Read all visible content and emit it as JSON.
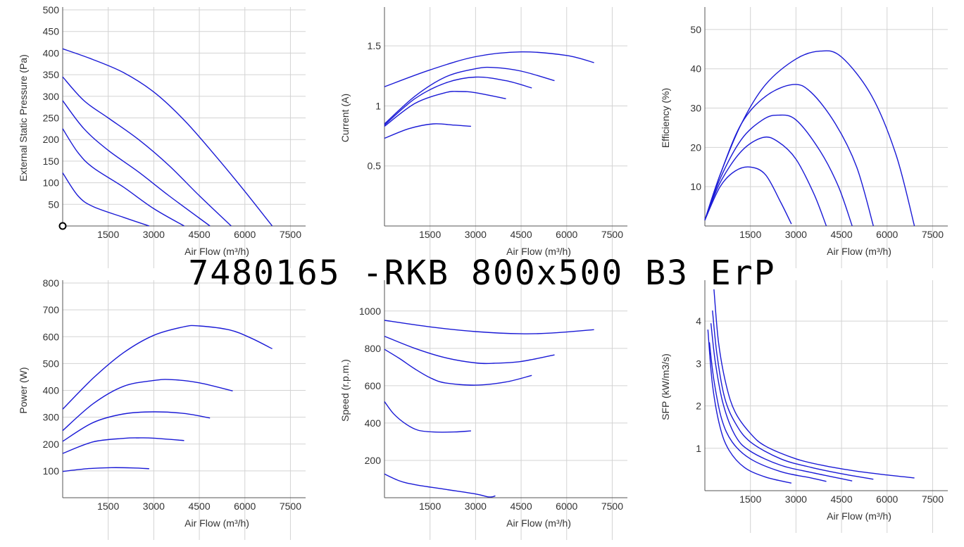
{
  "title": "7480165 -RKB 800x500 B3 ErP",
  "colors": {
    "curve": "#1a1ad6",
    "grid": "#d3d3d3",
    "axis": "#555555"
  },
  "chart_data": [
    {
      "type": "line",
      "xlabel": "Air Flow (m³/h)",
      "ylabel": "External Static Pressure (Pa)",
      "xlim": [
        0,
        8000
      ],
      "ylim": [
        0,
        500
      ],
      "xticks": [
        1500,
        3000,
        4500,
        6000,
        7500
      ],
      "yticks": [
        50,
        100,
        150,
        200,
        250,
        300,
        350,
        400,
        450,
        500
      ],
      "operating_point": {
        "x": 0,
        "y": 0
      },
      "series": [
        {
          "points": [
            [
              0,
              410
            ],
            [
              1000,
              385
            ],
            [
              2000,
              355
            ],
            [
              3000,
              310
            ],
            [
              4000,
              245
            ],
            [
              5000,
              165
            ],
            [
              6000,
              80
            ],
            [
              6900,
              0
            ]
          ]
        },
        {
          "points": [
            [
              0,
              345
            ],
            [
              700,
              290
            ],
            [
              1500,
              250
            ],
            [
              2500,
              200
            ],
            [
              3500,
              140
            ],
            [
              4500,
              70
            ],
            [
              5550,
              0
            ]
          ]
        },
        {
          "points": [
            [
              0,
              290
            ],
            [
              700,
              225
            ],
            [
              1500,
              175
            ],
            [
              2500,
              125
            ],
            [
              3500,
              70
            ],
            [
              4850,
              0
            ]
          ]
        },
        {
          "points": [
            [
              0,
              225
            ],
            [
              500,
              170
            ],
            [
              1000,
              135
            ],
            [
              2000,
              90
            ],
            [
              3000,
              40
            ],
            [
              4000,
              0
            ]
          ]
        },
        {
          "points": [
            [
              0,
              123
            ],
            [
              500,
              70
            ],
            [
              1000,
              45
            ],
            [
              2000,
              20
            ],
            [
              2850,
              0
            ]
          ]
        }
      ]
    },
    {
      "type": "line",
      "xlabel": "Air Flow (m³/h)",
      "ylabel": "Current (A)",
      "xlim": [
        0,
        8000
      ],
      "ylim": [
        0,
        1.8
      ],
      "xticks": [
        1500,
        3000,
        4500,
        6000,
        7500
      ],
      "yticks": [
        0.5,
        1,
        1.5
      ],
      "series": [
        {
          "points": [
            [
              0,
              1.16
            ],
            [
              1500,
              1.3
            ],
            [
              3000,
              1.41
            ],
            [
              4500,
              1.45
            ],
            [
              6000,
              1.42
            ],
            [
              6900,
              1.36
            ]
          ]
        },
        {
          "points": [
            [
              0,
              0.85
            ],
            [
              1000,
              1.08
            ],
            [
              2000,
              1.24
            ],
            [
              3000,
              1.31
            ],
            [
              3600,
              1.32
            ],
            [
              4500,
              1.29
            ],
            [
              5600,
              1.21
            ]
          ]
        },
        {
          "points": [
            [
              0,
              0.84
            ],
            [
              1000,
              1.06
            ],
            [
              2000,
              1.19
            ],
            [
              3000,
              1.24
            ],
            [
              4000,
              1.21
            ],
            [
              4850,
              1.15
            ]
          ]
        },
        {
          "points": [
            [
              0,
              0.83
            ],
            [
              1000,
              1.02
            ],
            [
              2000,
              1.11
            ],
            [
              2500,
              1.12
            ],
            [
              3000,
              1.11
            ],
            [
              4000,
              1.06
            ]
          ]
        },
        {
          "points": [
            [
              0,
              0.73
            ],
            [
              800,
              0.81
            ],
            [
              1600,
              0.85
            ],
            [
              2300,
              0.84
            ],
            [
              2850,
              0.83
            ]
          ]
        }
      ]
    },
    {
      "type": "line",
      "xlabel": "Air Flow (m³/h)",
      "ylabel": "Efficiency (%)",
      "xlim": [
        0,
        8000
      ],
      "ylim": [
        0,
        55
      ],
      "xticks": [
        1500,
        3000,
        4500,
        6000,
        7500
      ],
      "yticks": [
        10,
        20,
        30,
        40,
        50
      ],
      "series": [
        {
          "points": [
            [
              0,
              1.5
            ],
            [
              500,
              13
            ],
            [
              1200,
              26
            ],
            [
              2000,
              36
            ],
            [
              3000,
              42.5
            ],
            [
              3800,
              44.5
            ],
            [
              4500,
              43
            ],
            [
              5500,
              33
            ],
            [
              6300,
              18
            ],
            [
              6900,
              0
            ]
          ]
        },
        {
          "points": [
            [
              0,
              1.5
            ],
            [
              500,
              13
            ],
            [
              1200,
              26
            ],
            [
              2000,
              33
            ],
            [
              2900,
              36
            ],
            [
              3500,
              34
            ],
            [
              4300,
              26
            ],
            [
              5000,
              15
            ],
            [
              5550,
              0
            ]
          ]
        },
        {
          "points": [
            [
              0,
              1.5
            ],
            [
              500,
              12
            ],
            [
              1200,
              22
            ],
            [
              1900,
              27
            ],
            [
              2400,
              28.2
            ],
            [
              3000,
              27
            ],
            [
              3800,
              19
            ],
            [
              4400,
              10
            ],
            [
              4850,
              0
            ]
          ]
        },
        {
          "points": [
            [
              0,
              1.5
            ],
            [
              500,
              11
            ],
            [
              1200,
              19
            ],
            [
              1900,
              22.5
            ],
            [
              2400,
              21.5
            ],
            [
              3000,
              17
            ],
            [
              3600,
              8
            ],
            [
              4000,
              0
            ]
          ]
        },
        {
          "points": [
            [
              0,
              1.5
            ],
            [
              500,
              10
            ],
            [
              1000,
              14
            ],
            [
              1500,
              15
            ],
            [
              2000,
              13
            ],
            [
              2500,
              6
            ],
            [
              2850,
              0.5
            ]
          ]
        }
      ]
    },
    {
      "type": "line",
      "xlabel": "Air Flow (m³/h)",
      "ylabel": "Power (W)",
      "xlim": [
        0,
        8000
      ],
      "ylim": [
        0,
        800
      ],
      "xticks": [
        1500,
        3000,
        4500,
        6000,
        7500
      ],
      "yticks": [
        100,
        200,
        300,
        400,
        500,
        600,
        700,
        800
      ],
      "series": [
        {
          "points": [
            [
              0,
              330
            ],
            [
              1000,
              445
            ],
            [
              2000,
              540
            ],
            [
              3000,
              605
            ],
            [
              4000,
              637
            ],
            [
              4500,
              640
            ],
            [
              5500,
              625
            ],
            [
              6200,
              595
            ],
            [
              6900,
              555
            ]
          ]
        },
        {
          "points": [
            [
              0,
              250
            ],
            [
              1000,
              350
            ],
            [
              2000,
              415
            ],
            [
              3000,
              437
            ],
            [
              3600,
              440
            ],
            [
              4500,
              428
            ],
            [
              5600,
              398
            ]
          ]
        },
        {
          "points": [
            [
              0,
              210
            ],
            [
              1000,
              280
            ],
            [
              2000,
              312
            ],
            [
              3000,
              320
            ],
            [
              4000,
              314
            ],
            [
              4850,
              297
            ]
          ]
        },
        {
          "points": [
            [
              0,
              165
            ],
            [
              1000,
              208
            ],
            [
              2000,
              221
            ],
            [
              2500,
              223
            ],
            [
              3000,
              222
            ],
            [
              4000,
              213
            ]
          ]
        },
        {
          "points": [
            [
              0,
              98
            ],
            [
              800,
              108
            ],
            [
              1600,
              112
            ],
            [
              2300,
              111
            ],
            [
              2850,
              108
            ]
          ]
        }
      ]
    },
    {
      "type": "line",
      "xlabel": "Air Flow (m³/h)",
      "ylabel": "Speed (r.p.m.)",
      "xlim": [
        0,
        8000
      ],
      "ylim": [
        0,
        1150
      ],
      "xticks": [
        1500,
        3000,
        4500,
        6000,
        7500
      ],
      "yticks": [
        200,
        400,
        600,
        800,
        1000
      ],
      "series": [
        {
          "points": [
            [
              0,
              950
            ],
            [
              1500,
              915
            ],
            [
              3000,
              890
            ],
            [
              4500,
              878
            ],
            [
              5500,
              882
            ],
            [
              6900,
              900
            ]
          ]
        },
        {
          "points": [
            [
              0,
              865
            ],
            [
              1000,
              800
            ],
            [
              2000,
              750
            ],
            [
              3000,
              722
            ],
            [
              3600,
              720
            ],
            [
              4500,
              730
            ],
            [
              5600,
              765
            ]
          ]
        },
        {
          "points": [
            [
              0,
              795
            ],
            [
              500,
              745
            ],
            [
              1000,
              690
            ],
            [
              1500,
              643
            ],
            [
              2000,
              615
            ],
            [
              3000,
              603
            ],
            [
              4000,
              620
            ],
            [
              4850,
              655
            ]
          ]
        },
        {
          "points": [
            [
              0,
              515
            ],
            [
              300,
              450
            ],
            [
              700,
              395
            ],
            [
              1100,
              362
            ],
            [
              1600,
              352
            ],
            [
              2300,
              352
            ],
            [
              2850,
              358
            ]
          ]
        },
        {
          "points": [
            [
              0,
              127
            ],
            [
              500,
              90
            ],
            [
              1000,
              70
            ],
            [
              2000,
              45
            ],
            [
              3000,
              20
            ],
            [
              3400,
              5
            ],
            [
              3550,
              5
            ],
            [
              3650,
              10
            ]
          ]
        }
      ]
    },
    {
      "type": "line",
      "xlabel": "Air Flow (m³/h)",
      "ylabel": "SFP (kW/m3/s)",
      "xlim": [
        0,
        8000
      ],
      "ylim": [
        0,
        4.9
      ],
      "xticks": [
        1500,
        3000,
        4500,
        6000,
        7500
      ],
      "yticks": [
        1,
        2,
        3,
        4
      ],
      "series": [
        {
          "points": [
            [
              300,
              4.75
            ],
            [
              450,
              3.5
            ],
            [
              700,
              2.5
            ],
            [
              1000,
              1.85
            ],
            [
              1500,
              1.35
            ],
            [
              2000,
              1.05
            ],
            [
              3000,
              0.75
            ],
            [
              4000,
              0.58
            ],
            [
              5000,
              0.46
            ],
            [
              6000,
              0.37
            ],
            [
              6900,
              0.3
            ]
          ]
        },
        {
          "points": [
            [
              250,
              4.25
            ],
            [
              400,
              3.2
            ],
            [
              650,
              2.2
            ],
            [
              1000,
              1.6
            ],
            [
              1500,
              1.15
            ],
            [
              2500,
              0.75
            ],
            [
              3500,
              0.55
            ],
            [
              4500,
              0.4
            ],
            [
              5550,
              0.27
            ]
          ]
        },
        {
          "points": [
            [
              200,
              3.95
            ],
            [
              350,
              3.0
            ],
            [
              600,
              2.05
            ],
            [
              1000,
              1.3
            ],
            [
              1500,
              0.93
            ],
            [
              2500,
              0.6
            ],
            [
              3500,
              0.43
            ],
            [
              4850,
              0.23
            ]
          ]
        },
        {
          "points": [
            [
              150,
              3.5
            ],
            [
              300,
              2.6
            ],
            [
              550,
              1.7
            ],
            [
              900,
              1.15
            ],
            [
              1500,
              0.75
            ],
            [
              2500,
              0.45
            ],
            [
              3500,
              0.3
            ],
            [
              4000,
              0.22
            ]
          ]
        },
        {
          "points": [
            [
              100,
              3.8
            ],
            [
              250,
              2.5
            ],
            [
              500,
              1.5
            ],
            [
              800,
              0.95
            ],
            [
              1300,
              0.55
            ],
            [
              2000,
              0.32
            ],
            [
              2850,
              0.18
            ]
          ]
        }
      ]
    }
  ]
}
